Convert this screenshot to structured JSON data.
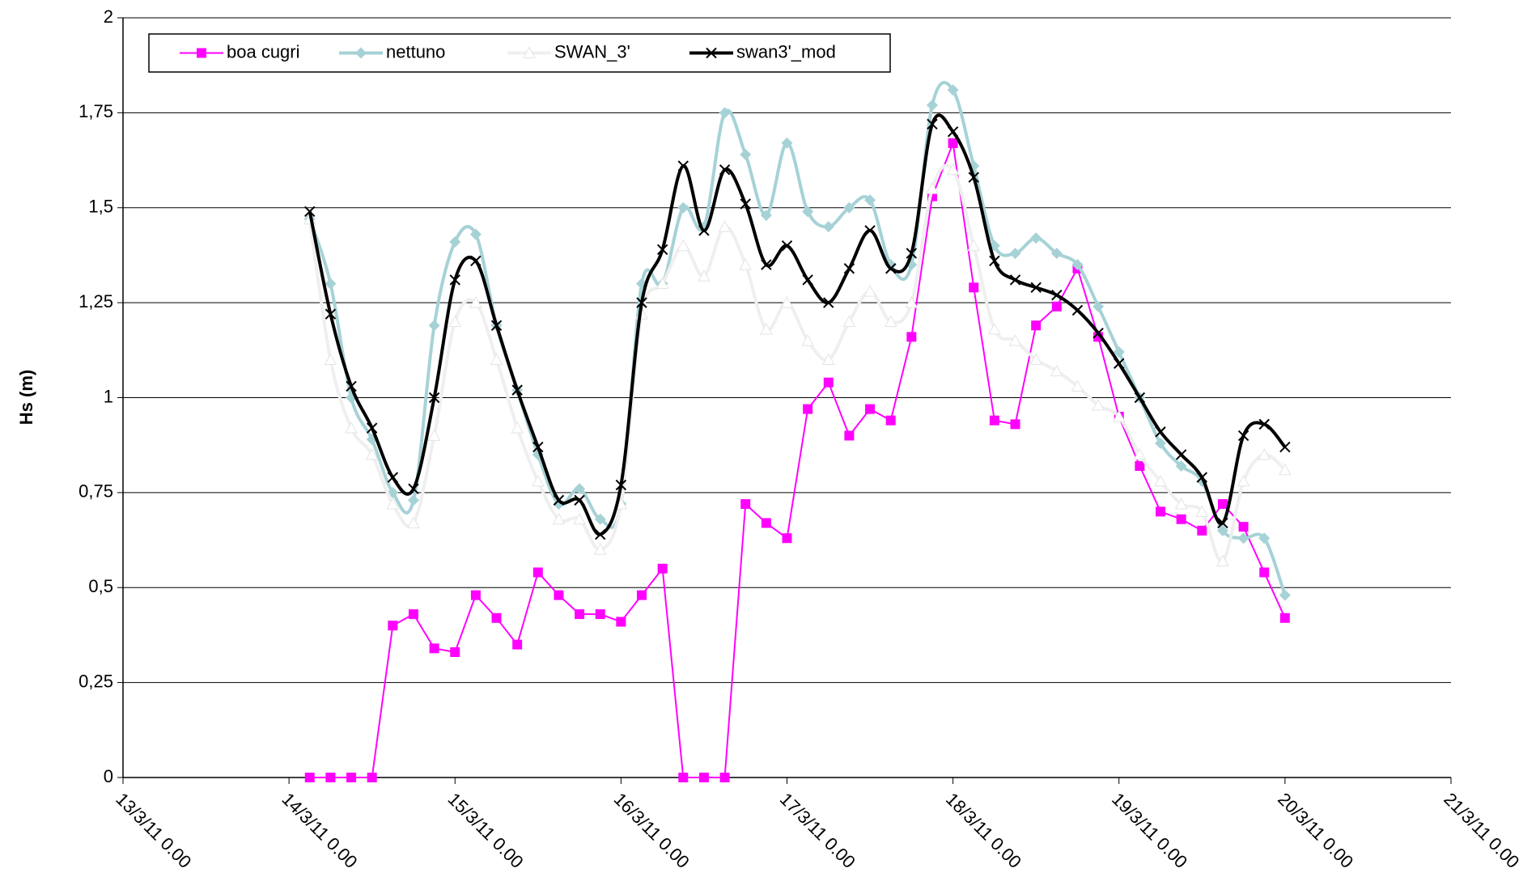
{
  "chart_data": {
    "type": "line",
    "ylabel": "Hs (m)",
    "x": [
      "14/3/11 3.00",
      "14/3/11 6.00",
      "14/3/11 9.00",
      "14/3/11 12.00",
      "14/3/11 15.00",
      "14/3/11 18.00",
      "14/3/11 21.00",
      "15/3/11 0.00",
      "15/3/11 3.00",
      "15/3/11 6.00",
      "15/3/11 9.00",
      "15/3/11 12.00",
      "15/3/11 15.00",
      "15/3/11 18.00",
      "15/3/11 21.00",
      "16/3/11 0.00",
      "16/3/11 3.00",
      "16/3/11 6.00",
      "16/3/11 9.00",
      "16/3/11 12.00",
      "16/3/11 15.00",
      "16/3/11 18.00",
      "16/3/11 21.00",
      "17/3/11 0.00",
      "17/3/11 3.00",
      "17/3/11 6.00",
      "17/3/11 9.00",
      "17/3/11 12.00",
      "17/3/11 15.00",
      "17/3/11 18.00",
      "17/3/11 21.00",
      "18/3/11 0.00",
      "18/3/11 3.00",
      "18/3/11 6.00",
      "18/3/11 9.00",
      "18/3/11 12.00",
      "18/3/11 15.00",
      "18/3/11 18.00",
      "18/3/11 21.00",
      "19/3/11 0.00",
      "19/3/11 3.00",
      "19/3/11 6.00",
      "19/3/11 9.00",
      "19/3/11 12.00",
      "19/3/11 15.00",
      "19/3/11 18.00",
      "19/3/11 21.00",
      "20/3/11 0.00"
    ],
    "series": [
      {
        "name": "boa cugri",
        "color": "#ff00ff",
        "marker": "square",
        "smooth": false,
        "values": [
          0,
          0,
          0,
          0,
          0.4,
          0.43,
          0.34,
          0.33,
          0.48,
          0.42,
          0.35,
          0.54,
          0.48,
          0.43,
          0.43,
          0.41,
          0.48,
          0.55,
          0,
          0,
          0,
          0.72,
          0.67,
          0.63,
          0.97,
          1.04,
          0.9,
          0.97,
          0.94,
          1.16,
          1.53,
          1.67,
          1.29,
          0.94,
          0.93,
          1.19,
          1.24,
          1.34,
          1.16,
          0.95,
          0.82,
          0.7,
          0.68,
          0.65,
          0.72,
          0.66,
          0.54,
          0.42
        ]
      },
      {
        "name": "nettuno",
        "color": "#a6d2d6",
        "marker": "diamond",
        "smooth": true,
        "values": [
          1.47,
          1.3,
          1.0,
          0.89,
          0.75,
          0.73,
          1.19,
          1.41,
          1.43,
          1.19,
          1.02,
          0.85,
          0.72,
          0.76,
          0.68,
          0.72,
          1.3,
          1.3,
          1.5,
          1.45,
          1.75,
          1.64,
          1.48,
          1.67,
          1.49,
          1.45,
          1.5,
          1.52,
          1.35,
          1.35,
          1.77,
          1.81,
          1.61,
          1.4,
          1.38,
          1.42,
          1.38,
          1.35,
          1.24,
          1.12,
          1.0,
          0.88,
          0.82,
          0.78,
          0.65,
          0.63,
          0.63,
          0.48
        ]
      },
      {
        "name": "SWAN_3'",
        "color": "#efefef",
        "marker": "triangle",
        "smooth": true,
        "values": [
          1.47,
          1.1,
          0.92,
          0.85,
          0.72,
          0.67,
          0.9,
          1.2,
          1.25,
          1.1,
          0.92,
          0.78,
          0.68,
          0.68,
          0.6,
          0.72,
          1.22,
          1.3,
          1.4,
          1.32,
          1.45,
          1.35,
          1.18,
          1.25,
          1.15,
          1.1,
          1.2,
          1.28,
          1.2,
          1.25,
          1.55,
          1.6,
          1.4,
          1.18,
          1.15,
          1.1,
          1.07,
          1.03,
          0.98,
          0.95,
          0.85,
          0.78,
          0.72,
          0.7,
          0.57,
          0.78,
          0.85,
          0.81
        ]
      },
      {
        "name": "swan3'_mod",
        "color": "#000000",
        "marker": "x",
        "smooth": true,
        "values": [
          1.49,
          1.22,
          1.03,
          0.92,
          0.79,
          0.76,
          1.0,
          1.31,
          1.36,
          1.19,
          1.02,
          0.87,
          0.73,
          0.73,
          0.64,
          0.77,
          1.25,
          1.39,
          1.61,
          1.44,
          1.6,
          1.51,
          1.35,
          1.4,
          1.31,
          1.25,
          1.34,
          1.44,
          1.34,
          1.38,
          1.72,
          1.7,
          1.58,
          1.36,
          1.31,
          1.29,
          1.27,
          1.23,
          1.17,
          1.09,
          1.0,
          0.91,
          0.85,
          0.79,
          0.67,
          0.9,
          0.93,
          0.87
        ]
      }
    ],
    "xlim": [
      "13/3/11 0.00",
      "21/3/11 0.00"
    ],
    "xticks": [
      "13/3/11 0.00",
      "14/3/11 0.00",
      "15/3/11 0.00",
      "16/3/11 0.00",
      "17/3/11 0.00",
      "18/3/11 0.00",
      "19/3/11 0.00",
      "20/3/11 0.00",
      "21/3/11 0.00"
    ],
    "ylim": [
      0,
      2
    ],
    "yticks": [
      0,
      {
        "value": 0.25,
        "label": "0,25"
      },
      {
        "value": 0.5,
        "label": "0,5"
      },
      {
        "value": 0.75,
        "label": "0,75"
      },
      1,
      {
        "value": 1.25,
        "label": "1,25"
      },
      {
        "value": 1.5,
        "label": "1,5"
      },
      {
        "value": 1.75,
        "label": "1,75"
      },
      2
    ],
    "grid": true,
    "legend": "top-left"
  }
}
